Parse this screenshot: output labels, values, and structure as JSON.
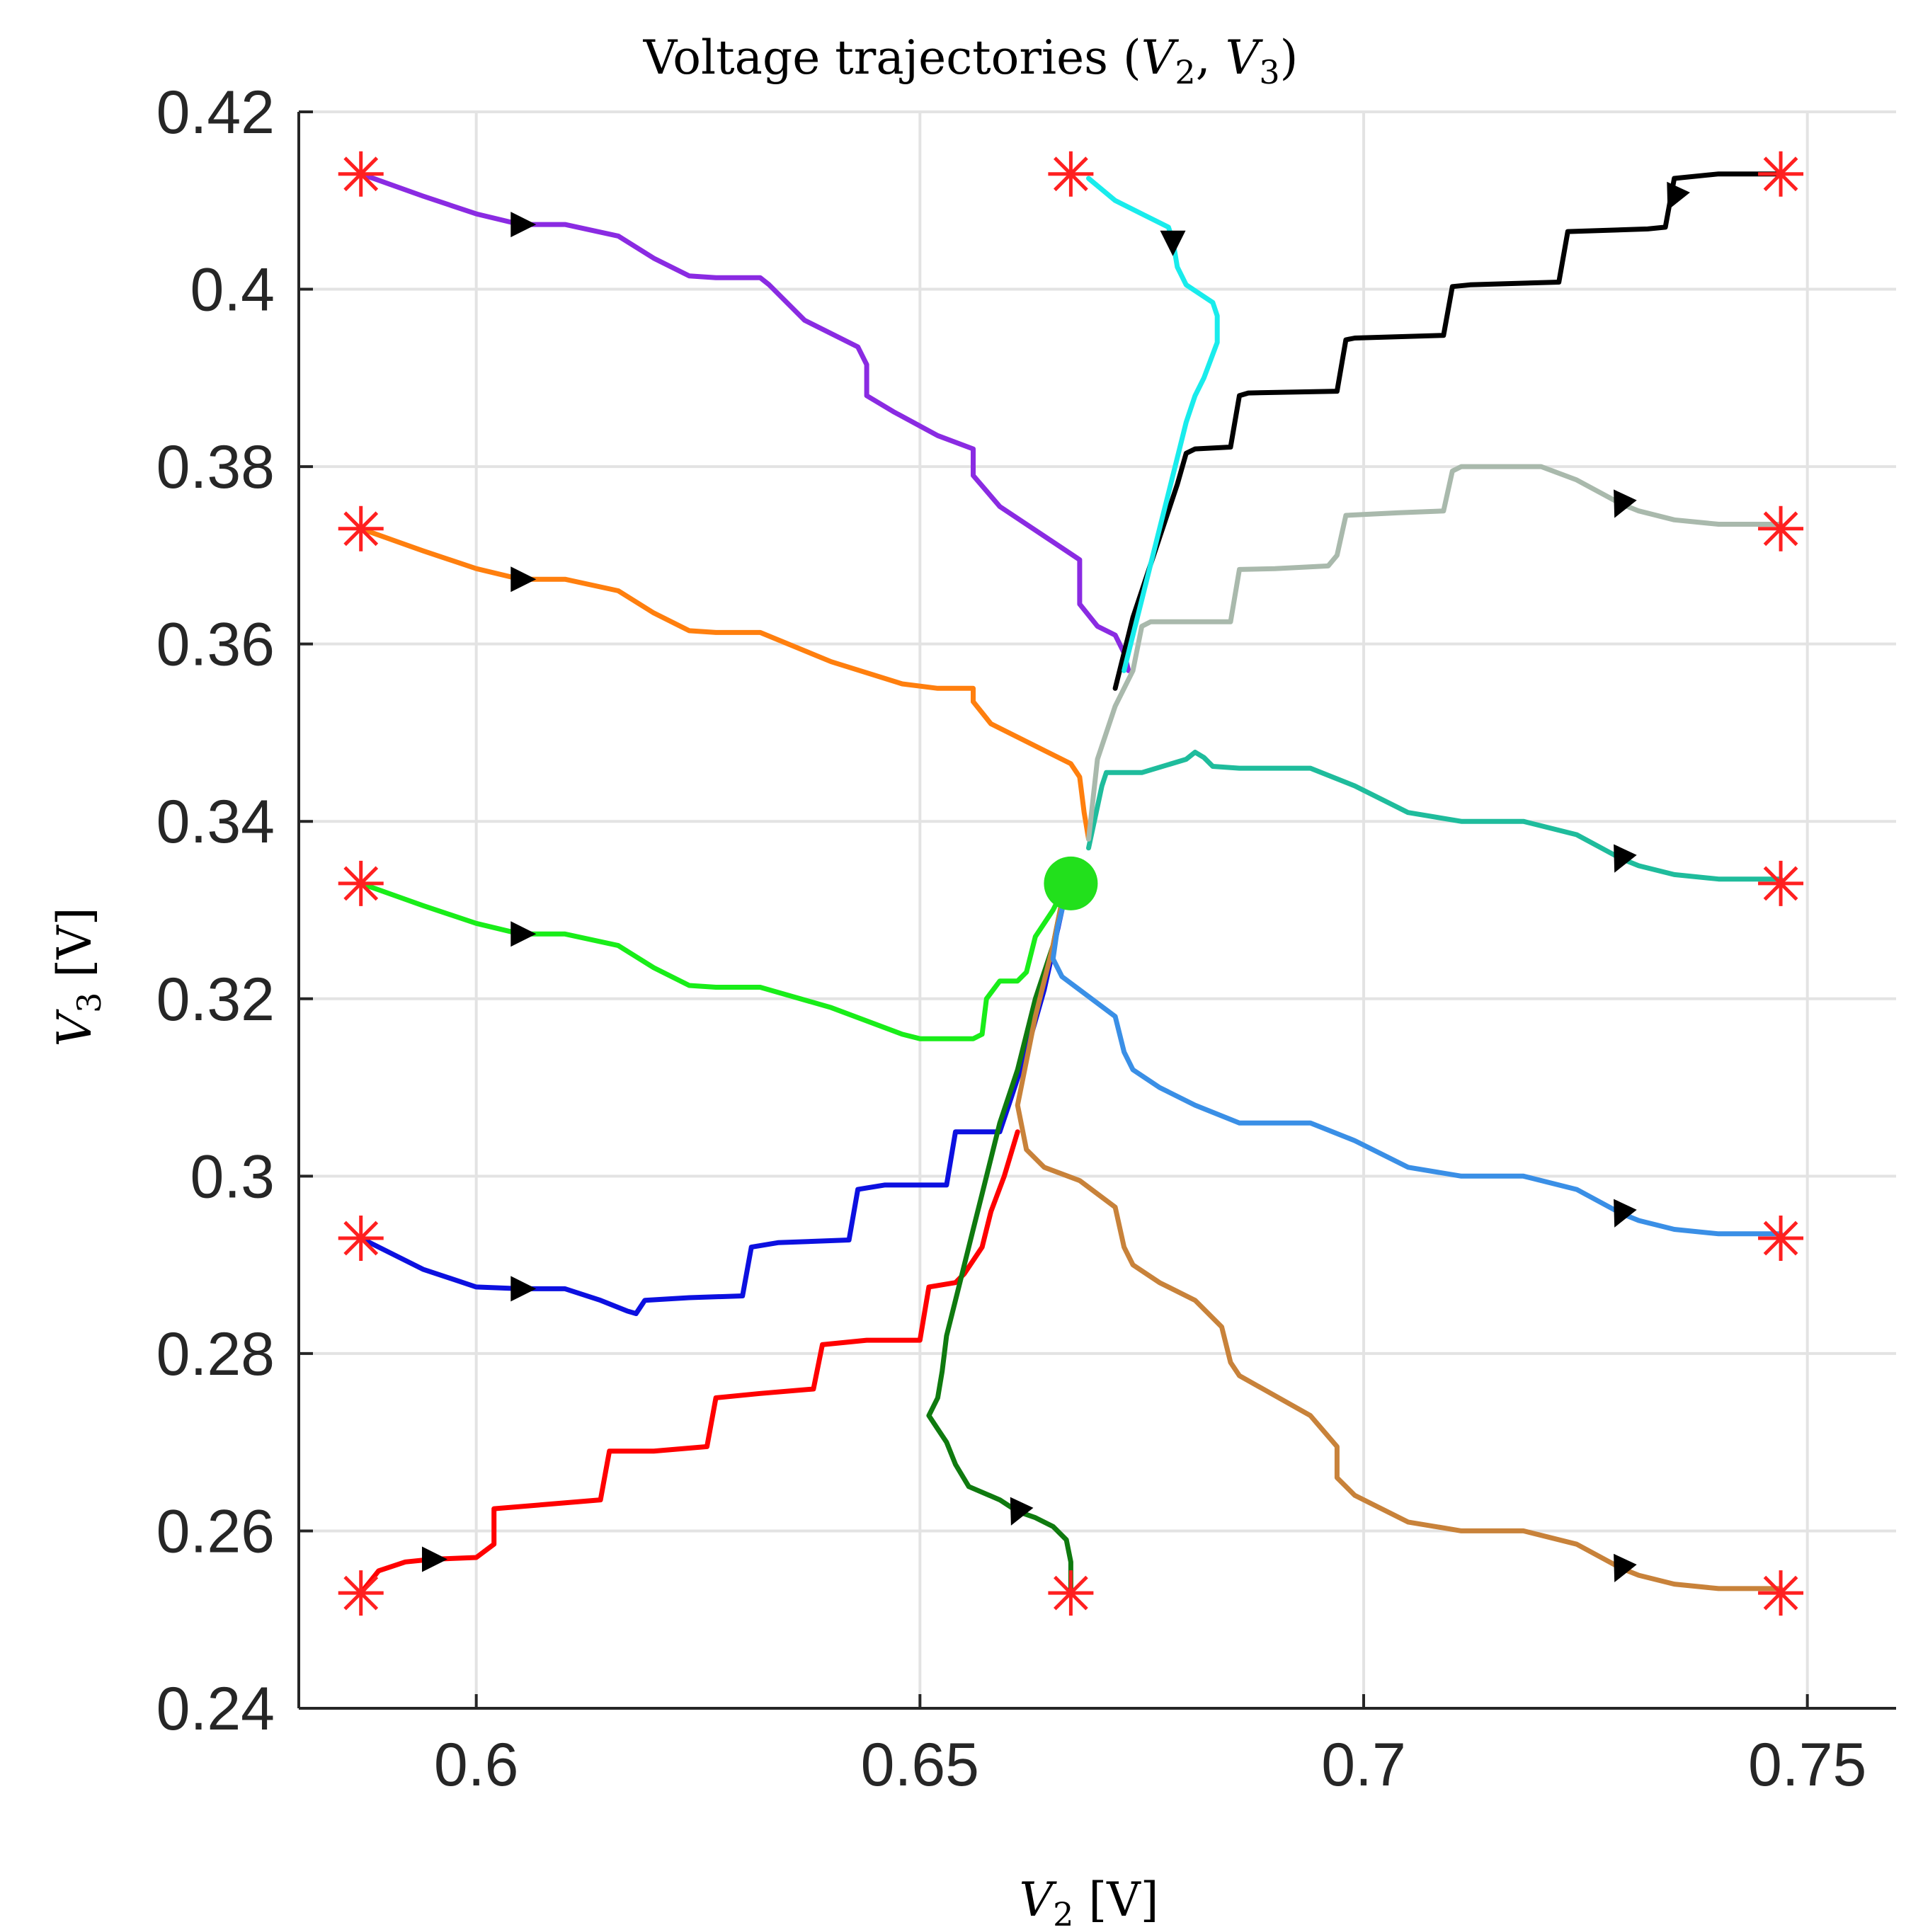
{
  "chart_data": {
    "type": "line",
    "title_parts": [
      "Voltage trajectories (",
      "V",
      "2",
      ", ",
      "V",
      "3",
      ")"
    ],
    "xlabel_parts": [
      "V",
      "2",
      " [V]"
    ],
    "ylabel_parts": [
      "V",
      "3",
      " [V]"
    ],
    "xlim": [
      0.58,
      0.76
    ],
    "ylim": [
      0.24,
      0.42
    ],
    "xticks": [
      0.6,
      0.65,
      0.7,
      0.75
    ],
    "xtick_labels": [
      "0.6",
      "0.65",
      "0.7",
      "0.75"
    ],
    "yticks": [
      0.24,
      0.26,
      0.28,
      0.3,
      0.32,
      0.34,
      0.36,
      0.38,
      0.4,
      0.42
    ],
    "ytick_labels": [
      "0.24",
      "0.26",
      "0.28",
      "0.3",
      "0.32",
      "0.34",
      "0.36",
      "0.38",
      "0.4",
      "0.42"
    ],
    "grid": true,
    "equilibrium": {
      "x": 0.667,
      "y": 0.333,
      "color": "#22e01c"
    },
    "start_marker_color": "#ff2020",
    "arrow_color": "#000000",
    "series": [
      {
        "name": "purple",
        "color": "#8a2be2",
        "start": [
          0.587,
          0.413
        ],
        "arrow": [
          0.605,
          0.4073
        ],
        "arrow_dir": "right",
        "x": [
          0.587,
          0.594,
          0.6,
          0.605,
          0.61,
          0.616,
          0.62,
          0.624,
          0.627,
          0.632,
          0.633,
          0.637,
          0.643,
          0.644,
          0.644,
          0.647,
          0.652,
          0.656,
          0.656,
          0.659,
          0.665,
          0.668,
          0.668,
          0.67,
          0.672,
          0.673,
          0.6735
        ],
        "y": [
          0.413,
          0.4105,
          0.4085,
          0.4073,
          0.4073,
          0.406,
          0.4035,
          0.4015,
          0.4013,
          0.4013,
          0.4005,
          0.3965,
          0.3935,
          0.3915,
          0.388,
          0.3862,
          0.3835,
          0.382,
          0.379,
          0.3755,
          0.3715,
          0.3695,
          0.3645,
          0.362,
          0.361,
          0.359,
          0.357
        ]
      },
      {
        "name": "orange",
        "color": "#ff7f0e",
        "start": [
          0.587,
          0.373
        ],
        "arrow": [
          0.605,
          0.3673
        ],
        "arrow_dir": "right",
        "x": [
          0.587,
          0.594,
          0.6,
          0.605,
          0.61,
          0.616,
          0.62,
          0.624,
          0.627,
          0.632,
          0.64,
          0.648,
          0.652,
          0.656,
          0.656,
          0.658,
          0.664,
          0.667,
          0.668,
          0.6685,
          0.669
        ],
        "y": [
          0.373,
          0.3705,
          0.3685,
          0.3673,
          0.3673,
          0.366,
          0.3635,
          0.3615,
          0.3613,
          0.3613,
          0.358,
          0.3555,
          0.355,
          0.355,
          0.3535,
          0.351,
          0.348,
          0.3465,
          0.345,
          0.341,
          0.338
        ]
      },
      {
        "name": "light green",
        "color": "#19ed19",
        "start": [
          0.587,
          0.333
        ],
        "arrow": [
          0.605,
          0.3273
        ],
        "arrow_dir": "right",
        "x": [
          0.587,
          0.594,
          0.6,
          0.605,
          0.61,
          0.616,
          0.62,
          0.624,
          0.627,
          0.632,
          0.64,
          0.648,
          0.65,
          0.656,
          0.657,
          0.6575,
          0.659,
          0.661,
          0.662,
          0.663,
          0.665,
          0.666
        ],
        "y": [
          0.333,
          0.3305,
          0.3285,
          0.3273,
          0.3273,
          0.326,
          0.3235,
          0.3215,
          0.3213,
          0.3213,
          0.319,
          0.316,
          0.3155,
          0.3155,
          0.316,
          0.32,
          0.322,
          0.322,
          0.323,
          0.327,
          0.33,
          0.332
        ]
      },
      {
        "name": "blue",
        "color": "#0c10e0",
        "start": [
          0.587,
          0.293
        ],
        "arrow": [
          0.605,
          0.2873
        ],
        "arrow_dir": "right",
        "x": [
          0.587,
          0.594,
          0.6,
          0.605,
          0.61,
          0.614,
          0.617,
          0.618,
          0.619,
          0.624,
          0.63,
          0.631,
          0.634,
          0.642,
          0.643,
          0.646,
          0.653,
          0.654,
          0.656,
          0.659,
          0.66,
          0.662,
          0.664,
          0.666
        ],
        "y": [
          0.293,
          0.2895,
          0.2875,
          0.2873,
          0.2873,
          0.286,
          0.2848,
          0.2845,
          0.286,
          0.2863,
          0.2865,
          0.292,
          0.2925,
          0.2928,
          0.2985,
          0.299,
          0.299,
          0.305,
          0.305,
          0.305,
          0.308,
          0.314,
          0.321,
          0.33
        ]
      },
      {
        "name": "red",
        "color": "#ff0000",
        "start": [
          0.587,
          0.253
        ],
        "arrow": [
          0.595,
          0.2568
        ],
        "arrow_dir": "right",
        "x": [
          0.587,
          0.589,
          0.592,
          0.595,
          0.6,
          0.602,
          0.602,
          0.608,
          0.614,
          0.615,
          0.62,
          0.626,
          0.627,
          0.632,
          0.638,
          0.639,
          0.644,
          0.65,
          0.651,
          0.654,
          0.655,
          0.657,
          0.658,
          0.6595,
          0.661
        ],
        "y": [
          0.253,
          0.2555,
          0.2565,
          0.2568,
          0.257,
          0.2585,
          0.2625,
          0.263,
          0.2635,
          0.269,
          0.269,
          0.2695,
          0.275,
          0.2755,
          0.276,
          0.281,
          0.2815,
          0.2815,
          0.2875,
          0.288,
          0.289,
          0.292,
          0.296,
          0.3,
          0.305
        ]
      },
      {
        "name": "dark green",
        "color": "#0f7a0f",
        "start": [
          0.667,
          0.253
        ],
        "arrow": [
          0.661,
          0.2622
        ],
        "arrow_dir": "down-left",
        "x": [
          0.667,
          0.667,
          0.6665,
          0.665,
          0.663,
          0.661,
          0.659,
          0.6555,
          0.654,
          0.653,
          0.652,
          0.651,
          0.652,
          0.6525,
          0.653,
          0.654,
          0.655,
          0.656,
          0.657,
          0.658,
          0.659,
          0.661,
          0.663,
          0.665,
          0.666
        ],
        "y": [
          0.253,
          0.2565,
          0.259,
          0.2605,
          0.2615,
          0.2622,
          0.2635,
          0.265,
          0.2675,
          0.27,
          0.2715,
          0.273,
          0.275,
          0.278,
          0.282,
          0.286,
          0.29,
          0.294,
          0.298,
          0.302,
          0.306,
          0.312,
          0.32,
          0.326,
          0.331
        ]
      },
      {
        "name": "brown",
        "color": "#c8823a",
        "start": [
          0.747,
          0.253
        ],
        "arrow": [
          0.729,
          0.2558
        ],
        "arrow_dir": "down-left",
        "x": [
          0.747,
          0.74,
          0.735,
          0.731,
          0.729,
          0.724,
          0.718,
          0.711,
          0.705,
          0.699,
          0.697,
          0.697,
          0.694,
          0.686,
          0.685,
          0.684,
          0.681,
          0.677,
          0.674,
          0.673,
          0.672,
          0.668,
          0.664,
          0.662,
          0.661,
          0.663,
          0.665,
          0.666
        ],
        "y": [
          0.2535,
          0.2535,
          0.254,
          0.255,
          0.2558,
          0.2585,
          0.26,
          0.26,
          0.261,
          0.264,
          0.266,
          0.2695,
          0.273,
          0.2775,
          0.279,
          0.283,
          0.286,
          0.288,
          0.29,
          0.292,
          0.2965,
          0.2995,
          0.301,
          0.303,
          0.308,
          0.318,
          0.326,
          0.331
        ]
      },
      {
        "name": "sky blue",
        "color": "#3a8fe6",
        "start": [
          0.747,
          0.293
        ],
        "arrow": [
          0.729,
          0.2958
        ],
        "arrow_dir": "down-left",
        "x": [
          0.747,
          0.74,
          0.735,
          0.731,
          0.729,
          0.724,
          0.718,
          0.711,
          0.705,
          0.699,
          0.694,
          0.686,
          0.681,
          0.677,
          0.674,
          0.673,
          0.672,
          0.668,
          0.666,
          0.665,
          0.6655,
          0.6665
        ],
        "y": [
          0.2935,
          0.2935,
          0.294,
          0.295,
          0.2958,
          0.2985,
          0.3,
          0.3,
          0.301,
          0.304,
          0.306,
          0.306,
          0.308,
          0.31,
          0.312,
          0.314,
          0.318,
          0.321,
          0.3225,
          0.3245,
          0.328,
          0.332
        ]
      },
      {
        "name": "teal",
        "color": "#1fbc9c",
        "start": [
          0.747,
          0.333
        ],
        "arrow": [
          0.729,
          0.3358
        ],
        "arrow_dir": "down-left",
        "x": [
          0.747,
          0.74,
          0.735,
          0.731,
          0.729,
          0.724,
          0.718,
          0.711,
          0.705,
          0.699,
          0.694,
          0.686,
          0.683,
          0.682,
          0.681,
          0.68,
          0.675,
          0.672,
          0.671,
          0.6705,
          0.669
        ],
        "y": [
          0.3335,
          0.3335,
          0.334,
          0.335,
          0.3358,
          0.3385,
          0.34,
          0.34,
          0.341,
          0.344,
          0.346,
          0.346,
          0.3462,
          0.3472,
          0.3478,
          0.347,
          0.3455,
          0.3455,
          0.3455,
          0.344,
          0.337
        ]
      },
      {
        "name": "gray",
        "color": "#a9b9ac",
        "start": [
          0.747,
          0.373
        ],
        "arrow": [
          0.729,
          0.3758
        ],
        "arrow_dir": "down-left",
        "x": [
          0.747,
          0.74,
          0.735,
          0.731,
          0.729,
          0.724,
          0.72,
          0.714,
          0.711,
          0.71,
          0.709,
          0.704,
          0.698,
          0.697,
          0.696,
          0.69,
          0.686,
          0.685,
          0.684,
          0.68,
          0.676,
          0.675,
          0.674,
          0.672,
          0.67,
          0.669
        ],
        "y": [
          0.3735,
          0.3735,
          0.374,
          0.375,
          0.3758,
          0.3785,
          0.38,
          0.38,
          0.38,
          0.3795,
          0.375,
          0.3748,
          0.3745,
          0.37,
          0.3688,
          0.3685,
          0.3684,
          0.3625,
          0.3625,
          0.3625,
          0.3625,
          0.362,
          0.357,
          0.353,
          0.347,
          0.338
        ]
      },
      {
        "name": "black",
        "color": "#000000",
        "start": [
          0.747,
          0.413
        ],
        "arrow": [
          0.735,
          0.4105
        ],
        "arrow_dir": "down-left",
        "x": [
          0.747,
          0.74,
          0.735,
          0.734,
          0.732,
          0.723,
          0.722,
          0.712,
          0.71,
          0.709,
          0.699,
          0.698,
          0.697,
          0.687,
          0.686,
          0.685,
          0.681,
          0.68,
          0.679,
          0.678,
          0.677,
          0.676,
          0.675,
          0.674,
          0.673,
          0.672
        ],
        "y": [
          0.413,
          0.413,
          0.4125,
          0.407,
          0.4068,
          0.4065,
          0.4008,
          0.4005,
          0.4003,
          0.3948,
          0.3945,
          0.3943,
          0.3885,
          0.3883,
          0.388,
          0.3822,
          0.382,
          0.3815,
          0.378,
          0.375,
          0.372,
          0.369,
          0.366,
          0.363,
          0.359,
          0.355
        ]
      },
      {
        "name": "cyan",
        "color": "#19ecec",
        "start": [
          0.667,
          0.413
        ],
        "arrow": [
          0.6785,
          0.4055
        ],
        "arrow_dir": "down",
        "x": [
          0.669,
          0.672,
          0.675,
          0.678,
          0.6785,
          0.679,
          0.68,
          0.683,
          0.6835,
          0.6835,
          0.682,
          0.681,
          0.68,
          0.679,
          0.678,
          0.677,
          0.676,
          0.675,
          0.674,
          0.673
        ],
        "y": [
          0.4125,
          0.41,
          0.4085,
          0.407,
          0.4055,
          0.4025,
          0.4005,
          0.3985,
          0.397,
          0.394,
          0.39,
          0.388,
          0.385,
          0.381,
          0.377,
          0.373,
          0.369,
          0.365,
          0.361,
          0.357
        ]
      }
    ]
  }
}
